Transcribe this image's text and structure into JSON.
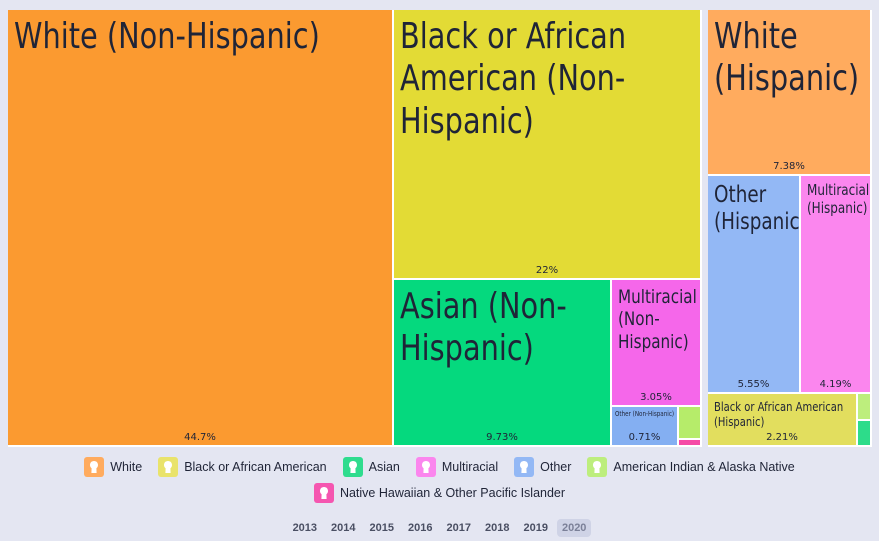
{
  "chart_data": {
    "type": "treemap",
    "tiles": [
      {
        "label": "White (Non-Hispanic)",
        "value": "44.7%",
        "color": "#fb9a30"
      },
      {
        "label": "Black or African American (Non-Hispanic)",
        "value": "22%",
        "color": "#e3db35"
      },
      {
        "label": "Asian (Non-Hispanic)",
        "value": "9.73%",
        "color": "#05d97e"
      },
      {
        "label": "Multiracial (Non-Hispanic)",
        "value": "3.05%",
        "color": "#f567ea"
      },
      {
        "label": "Other (Non-Hispanic)",
        "value": "0.71%",
        "color": "#84aff2"
      },
      {
        "label": "",
        "value": "",
        "color": "#b6ec6a"
      },
      {
        "label": "",
        "value": "",
        "color": "#f54aa6"
      },
      {
        "label": "White (Hispanic)",
        "value": "7.38%",
        "color": "#ffab5e"
      },
      {
        "label": "Other (Hispanic)",
        "value": "5.55%",
        "color": "#93b8f5"
      },
      {
        "label": "Multiracial (Hispanic)",
        "value": "4.19%",
        "color": "#fb86ee"
      },
      {
        "label": "Black or African American (Hispanic)",
        "value": "2.21%",
        "color": "#e2de5e"
      },
      {
        "label": "",
        "value": "",
        "color": "#bdee7d"
      },
      {
        "label": "",
        "value": "",
        "color": "#2ddc8a"
      }
    ]
  },
  "legend": [
    {
      "label": "White",
      "color": "#ffab5e",
      "icon": "person-icon"
    },
    {
      "label": "Black or African American",
      "color": "#e9e36b",
      "icon": "person-icon"
    },
    {
      "label": "Asian",
      "color": "#2fdc8e",
      "icon": "person-icon"
    },
    {
      "label": "Multiracial",
      "color": "#fb86ee",
      "icon": "person-icon"
    },
    {
      "label": "Other",
      "color": "#93b8f5",
      "icon": "person-icon"
    },
    {
      "label": "American Indian & Alaska Native",
      "color": "#bdee7d",
      "icon": "person-icon"
    },
    {
      "label": "Native Hawaiian & Other Pacific Islander",
      "color": "#f556b0",
      "icon": "person-icon"
    }
  ],
  "years": [
    "2013",
    "2014",
    "2015",
    "2016",
    "2017",
    "2018",
    "2019",
    "2020"
  ],
  "selected_year": "2020"
}
